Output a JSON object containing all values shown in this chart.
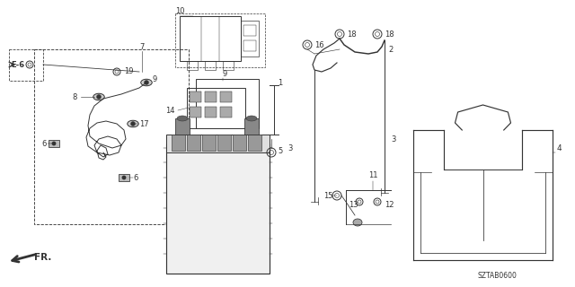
{
  "bg_color": "#ffffff",
  "line_color": "#333333",
  "diagram_code": "SZTAB0600",
  "figsize": [
    6.4,
    3.2
  ],
  "dpi": 100
}
